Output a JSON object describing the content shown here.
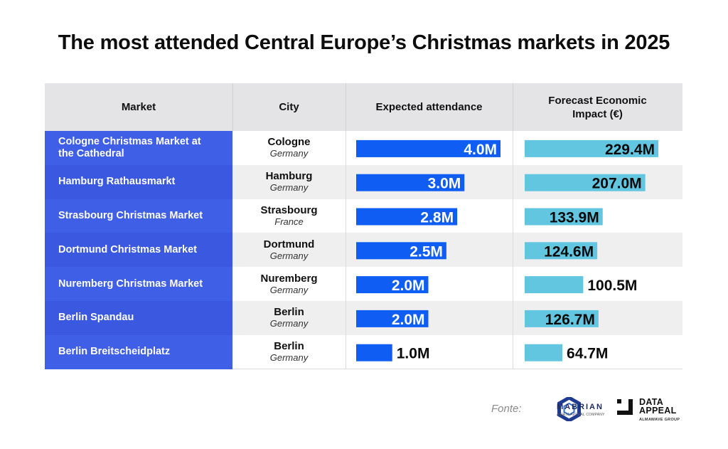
{
  "title": "The most attended Central Europe’s Christmas markets in 2025",
  "columns": [
    "Market",
    "City",
    "Expected attendance",
    "Forecast Economic Impact (€)"
  ],
  "rows": [
    {
      "market": "Cologne Christmas Market at the Cathedral",
      "city": "Cologne",
      "country": "Germany"
    },
    {
      "market": "Hamburg Rathausmarkt",
      "city": "Hamburg",
      "country": "Germany"
    },
    {
      "market": "Strasbourg Christmas Market",
      "city": "Strasbourg",
      "country": "France"
    },
    {
      "market": "Dortmund Christmas Market",
      "city": "Dortmund",
      "country": "Germany"
    },
    {
      "market": "Nuremberg Christmas Market",
      "city": "Nuremberg",
      "country": "Germany"
    },
    {
      "market": "Berlin Spandau",
      "city": "Berlin",
      "country": "Germany"
    },
    {
      "market": "Berlin Breitscheidplatz",
      "city": "Berlin",
      "country": "Germany"
    }
  ],
  "chart_data": {
    "type": "bar",
    "categories": [
      "Cologne Christmas Market at the Cathedral",
      "Hamburg Rathausmarkt",
      "Strasbourg Christmas Market",
      "Dortmund Christmas Market",
      "Nuremberg Christmas Market",
      "Berlin Spandau",
      "Berlin Breitscheidplatz"
    ],
    "series": [
      {
        "name": "Expected attendance",
        "values": [
          4.0,
          3.0,
          2.8,
          2.5,
          2.0,
          2.0,
          1.0
        ],
        "labels": [
          "4.0M",
          "3.0M",
          "2.8M",
          "2.5M",
          "2.0M",
          "2.0M",
          "1.0M"
        ],
        "color": "#0f5df2"
      },
      {
        "name": "Forecast Economic Impact (€)",
        "values": [
          229.4,
          207.0,
          133.9,
          124.6,
          100.5,
          126.7,
          64.7
        ],
        "labels": [
          "229.4M",
          "207.0M",
          "133.9M",
          "124.6M",
          "100.5M",
          "126.7M",
          "64.7M"
        ],
        "color": "#63c6e1"
      }
    ],
    "orientation": "horizontal",
    "grid": false
  },
  "footer": {
    "label": "Fonte:",
    "mabrian_name": "MABRIAN",
    "mabrian_sub": "A DATA APPEAL COMPANY",
    "dataappeal_line1": "DATA",
    "dataappeal_line2": "APPEAL",
    "dataappeal_sub": "ALMAWAVE GROUP"
  }
}
